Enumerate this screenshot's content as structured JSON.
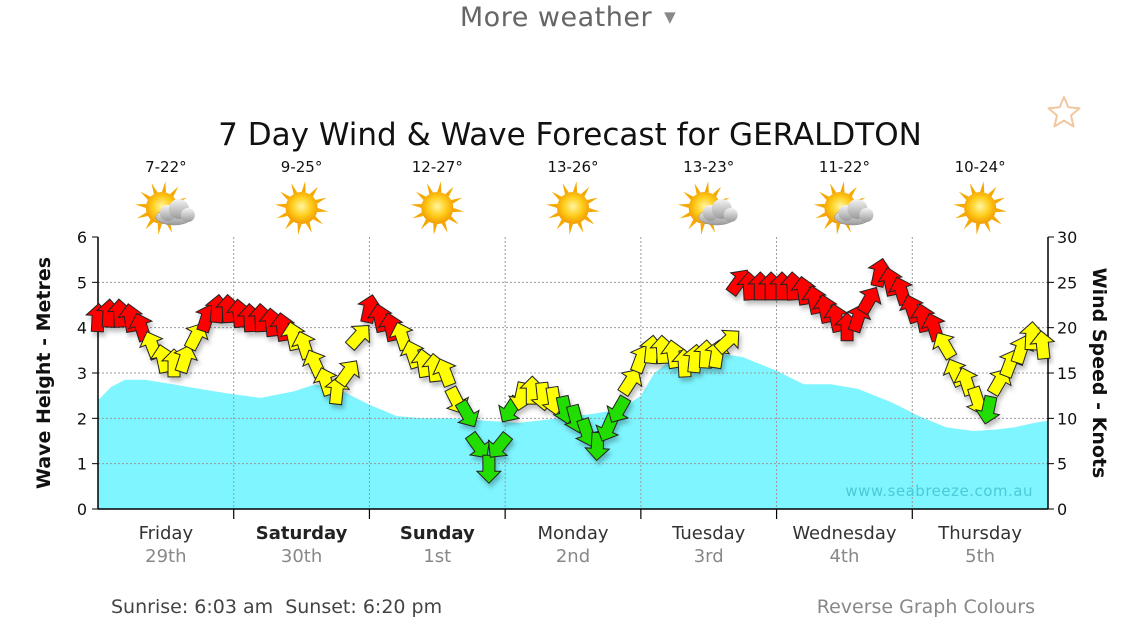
{
  "header": {
    "more_weather_label": "More weather"
  },
  "footer": {
    "sunrise_sunset": "Sunrise: 6:03 am  Sunset: 6:20 pm",
    "reverse_colours_label": "Reverse Graph Colours"
  },
  "chart_data": {
    "type": "area",
    "title": "7 Day Wind & Wave Forecast for GERALDTON",
    "ylabel_left": "Wave Height - Metres",
    "ylabel_right": "Wind Speed - Knots",
    "ylim_left": [
      0,
      6
    ],
    "ylim_right": [
      0,
      30
    ],
    "yticks_left": [
      "0",
      "1",
      "2",
      "3",
      "4",
      "5",
      "6"
    ],
    "yticks_right": [
      "0",
      "5",
      "10",
      "15",
      "20",
      "25",
      "30"
    ],
    "watermark": "www.seabreeze.com.au",
    "grid": true,
    "days": [
      {
        "day": "Friday",
        "date": "29th",
        "temps": "7-22°",
        "icon": "sun-cloud-icon",
        "bold": false
      },
      {
        "day": "Saturday",
        "date": "30th",
        "temps": "9-25°",
        "icon": "sun-icon",
        "bold": true
      },
      {
        "day": "Sunday",
        "date": "1st",
        "temps": "12-27°",
        "icon": "sun-icon",
        "bold": true
      },
      {
        "day": "Monday",
        "date": "2nd",
        "temps": "13-26°",
        "icon": "sun-icon",
        "bold": false
      },
      {
        "day": "Tuesday",
        "date": "3rd",
        "temps": "13-23°",
        "icon": "sun-cloud-icon",
        "bold": false
      },
      {
        "day": "Wednesday",
        "date": "4th",
        "temps": "11-22°",
        "icon": "sun-cloud-icon",
        "bold": false
      },
      {
        "day": "Thursday",
        "date": "5th",
        "temps": "10-24°",
        "icon": "sun-icon",
        "bold": false
      }
    ],
    "wave_series": {
      "name": "Wave Height",
      "color": "#7ef5ff",
      "x_days": [
        0,
        0.1,
        0.2,
        0.35,
        0.55,
        0.75,
        0.95,
        1.2,
        1.45,
        1.6,
        1.8,
        2.0,
        2.2,
        2.4,
        2.6,
        2.85,
        3.1,
        3.4,
        3.65,
        3.85,
        4.0,
        4.1,
        4.25,
        4.4,
        4.55,
        4.75,
        5.0,
        5.2,
        5.4,
        5.6,
        5.85,
        6.05,
        6.25,
        6.45,
        6.6,
        6.75,
        6.9,
        7.0
      ],
      "values": [
        2.4,
        2.7,
        2.85,
        2.85,
        2.75,
        2.65,
        2.55,
        2.45,
        2.6,
        2.75,
        2.6,
        2.3,
        2.05,
        2.0,
        2.0,
        1.95,
        1.9,
        2.0,
        2.1,
        2.2,
        2.5,
        3.0,
        3.35,
        3.45,
        3.45,
        3.35,
        3.05,
        2.75,
        2.75,
        2.65,
        2.35,
        2.05,
        1.8,
        1.72,
        1.75,
        1.8,
        1.9,
        1.95
      ]
    },
    "wind_series": {
      "name": "Wind Speed",
      "x_days": [
        0,
        0.08,
        0.16,
        0.24,
        0.32,
        0.4,
        0.48,
        0.56,
        0.64,
        0.72,
        0.8,
        0.88,
        0.96,
        1.04,
        1.12,
        1.2,
        1.28,
        1.36,
        1.44,
        1.52,
        1.6,
        1.68,
        1.76,
        1.84,
        1.92,
        2.0,
        2.08,
        2.16,
        2.24,
        2.32,
        2.4,
        2.48,
        2.56,
        2.64,
        2.72,
        2.8,
        2.88,
        2.96,
        3.04,
        3.12,
        3.2,
        3.28,
        3.36,
        3.44,
        3.52,
        3.6,
        3.68,
        3.76,
        3.84,
        3.92,
        4.0,
        4.08,
        4.16,
        4.24,
        4.32,
        4.4,
        4.48,
        4.56,
        4.64,
        4.72,
        4.8,
        4.88,
        4.96,
        5.04,
        5.12,
        5.2,
        5.28,
        5.36,
        5.44,
        5.52,
        5.6,
        5.68,
        5.76,
        5.84,
        5.92,
        6.0,
        6.08,
        6.16,
        6.24,
        6.32,
        6.4,
        6.48,
        6.56,
        6.64,
        6.72,
        6.8,
        6.88,
        6.96
      ],
      "knots": [
        21,
        21.5,
        21.5,
        21,
        20,
        18,
        16.5,
        16,
        16.5,
        19,
        21,
        22,
        22,
        21.5,
        21,
        21,
        20.5,
        20,
        19,
        18,
        16,
        14,
        13,
        15,
        19,
        22,
        21,
        20,
        19,
        17,
        16,
        15.5,
        15,
        12,
        10.5,
        7,
        4.5,
        7,
        11,
        12.5,
        13,
        12.5,
        12,
        11,
        10,
        8.5,
        7,
        9,
        11,
        14,
        16.5,
        17.5,
        17.5,
        17,
        16,
        16.5,
        17,
        17,
        18.5,
        25,
        24.5,
        24.5,
        24.5,
        24.5,
        24.5,
        24,
        23,
        22,
        21,
        20,
        21,
        23,
        26,
        25,
        24,
        22,
        21,
        20,
        18,
        15,
        14,
        12,
        11,
        14,
        16,
        17.5,
        19,
        18
      ]
    }
  }
}
